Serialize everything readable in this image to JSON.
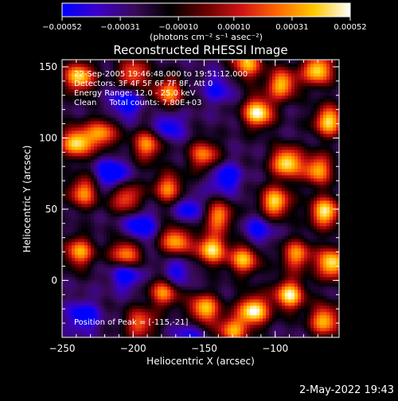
{
  "chart_data": {
    "type": "heatmap",
    "title": "Reconstructed RHESSI Image",
    "xlabel": "Heliocentric X (arcsec)",
    "ylabel": "Heliocentric Y (arcsec)",
    "xlim": [
      -250,
      -55
    ],
    "ylim": [
      -40,
      155
    ],
    "x_ticks": [
      -250,
      -200,
      -150,
      -100
    ],
    "x_tick_labels": [
      "−250",
      "−200",
      "−150",
      "−100"
    ],
    "y_ticks": [
      0,
      50,
      100,
      150
    ],
    "y_tick_labels": [
      "0",
      "50",
      "100",
      "150"
    ],
    "colorbar": {
      "range": [
        -0.00052,
        0.00052
      ],
      "ticks": [
        -0.00052,
        -0.00031,
        -0.0001,
        0.0001,
        0.00031,
        0.00052
      ],
      "tick_labels": [
        "−0.00052",
        "−0.00031",
        "−0.00010",
        "0.00010",
        "0.00031",
        "0.00052"
      ],
      "units_label": "(photons cm⁻² s⁻¹ asec⁻²)",
      "colors": [
        "#0000ff",
        "#3c00c8",
        "#3a0a5a",
        "#000000",
        "#6a0000",
        "#d21414",
        "#ff6a00",
        "#ffc800",
        "#ffffff"
      ]
    },
    "annotations": [
      "22-Sep-2005 19:46:48.000 to 19:51:12.000",
      "Detectors: 3F 4F 5F 6F 7F 8F, Att 0",
      "Energy Range: 12.0 - 25.0 keV",
      "Clean     Total counts: 7.80E+03"
    ],
    "peak_label": "Position of Peak = [-115,-21]",
    "hotspots": [
      {
        "x": -238,
        "y": 143,
        "v": 0.85
      },
      {
        "x": -200,
        "y": 145,
        "v": 0.55
      },
      {
        "x": -175,
        "y": 132,
        "v": 0.6
      },
      {
        "x": -120,
        "y": 152,
        "v": 0.7
      },
      {
        "x": -112,
        "y": 118,
        "v": 1.0
      },
      {
        "x": -95,
        "y": 138,
        "v": 0.75
      },
      {
        "x": -70,
        "y": 148,
        "v": 0.9
      },
      {
        "x": -62,
        "y": 112,
        "v": 0.85
      },
      {
        "x": -240,
        "y": 97,
        "v": 0.9
      },
      {
        "x": -222,
        "y": 103,
        "v": 0.6
      },
      {
        "x": -190,
        "y": 95,
        "v": 0.6
      },
      {
        "x": -150,
        "y": 88,
        "v": 0.55
      },
      {
        "x": -92,
        "y": 83,
        "v": 0.95
      },
      {
        "x": -70,
        "y": 78,
        "v": 0.7
      },
      {
        "x": -235,
        "y": 62,
        "v": 0.6
      },
      {
        "x": -205,
        "y": 58,
        "v": 0.5
      },
      {
        "x": -175,
        "y": 65,
        "v": 0.55
      },
      {
        "x": -140,
        "y": 45,
        "v": 0.6
      },
      {
        "x": -100,
        "y": 55,
        "v": 0.85
      },
      {
        "x": -65,
        "y": 48,
        "v": 0.9
      },
      {
        "x": -238,
        "y": 20,
        "v": 0.65
      },
      {
        "x": -205,
        "y": 18,
        "v": 0.75
      },
      {
        "x": -170,
        "y": 28,
        "v": 0.7
      },
      {
        "x": -145,
        "y": 22,
        "v": 0.85
      },
      {
        "x": -122,
        "y": 15,
        "v": 0.7
      },
      {
        "x": -85,
        "y": 18,
        "v": 0.6
      },
      {
        "x": -60,
        "y": 12,
        "v": 0.95
      },
      {
        "x": -178,
        "y": -8,
        "v": 0.6
      },
      {
        "x": -150,
        "y": -20,
        "v": 0.8
      },
      {
        "x": -115,
        "y": -21,
        "v": 1.0
      },
      {
        "x": -90,
        "y": -10,
        "v": 0.9
      },
      {
        "x": -65,
        "y": -28,
        "v": 0.75
      },
      {
        "x": -130,
        "y": -35,
        "v": 0.6
      },
      {
        "x": -195,
        "y": -30,
        "v": 0.5
      }
    ],
    "coldspots": [
      {
        "x": -205,
        "y": 125,
        "v": -0.7
      },
      {
        "x": -140,
        "y": 135,
        "v": -0.5
      },
      {
        "x": -215,
        "y": 75,
        "v": -0.85
      },
      {
        "x": -175,
        "y": 108,
        "v": -0.6
      },
      {
        "x": -135,
        "y": 72,
        "v": -0.7
      },
      {
        "x": -160,
        "y": 50,
        "v": -0.6
      },
      {
        "x": -195,
        "y": 38,
        "v": -0.75
      },
      {
        "x": -205,
        "y": 5,
        "v": -0.8
      },
      {
        "x": -170,
        "y": 5,
        "v": -0.6
      },
      {
        "x": -112,
        "y": 35,
        "v": -0.55
      },
      {
        "x": -235,
        "y": -25,
        "v": -0.7
      },
      {
        "x": -160,
        "y": -38,
        "v": -0.45
      }
    ]
  },
  "footer": {
    "timestamp": "2-May-2022 19:43"
  }
}
